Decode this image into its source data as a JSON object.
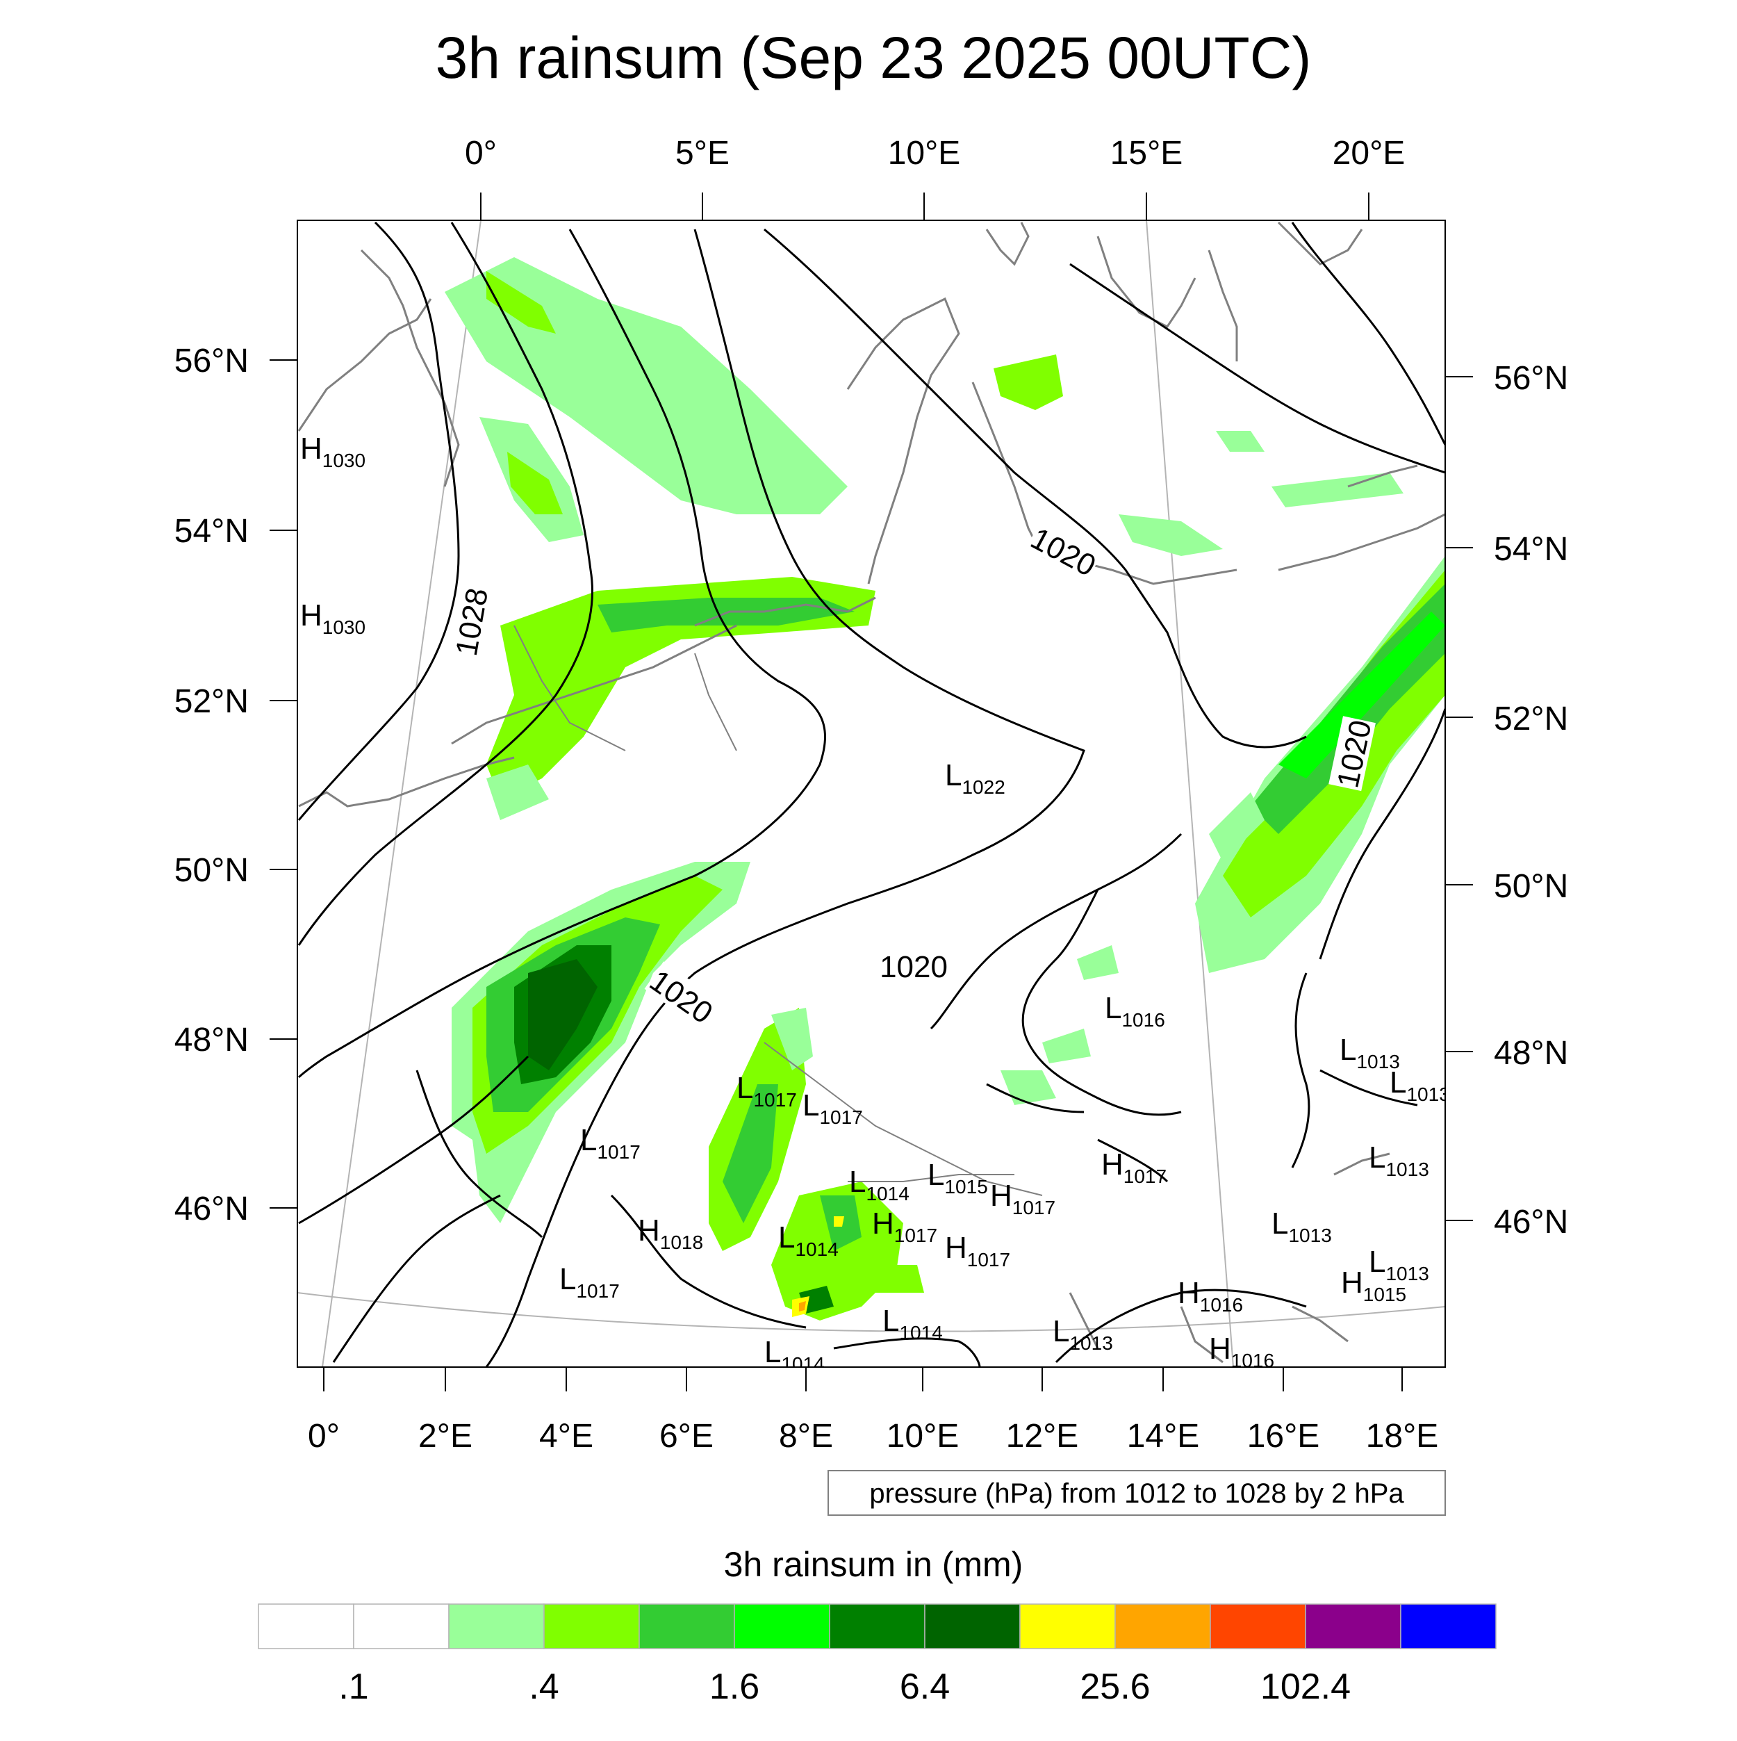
{
  "title": "3h rainsum (Sep 23 2025 00UTC)",
  "top_lon_labels": [
    "0°",
    "5°E",
    "10°E",
    "15°E",
    "20°E"
  ],
  "bottom_lon_labels": [
    "0°",
    "2°E",
    "4°E",
    "6°E",
    "8°E",
    "10°E",
    "12°E",
    "14°E",
    "16°E",
    "18°E"
  ],
  "left_lat_labels": [
    "56°N",
    "54°N",
    "52°N",
    "50°N",
    "48°N",
    "46°N"
  ],
  "right_lat_labels": [
    "56°N",
    "54°N",
    "52°N",
    "50°N",
    "48°N",
    "46°N"
  ],
  "pressure_note": "pressure (hPa) from 1012 to 1028 by 2 hPa",
  "contour_labels": [
    "1028",
    "1020",
    "1020",
    "1020",
    "1020"
  ],
  "pressure_systems": [
    {
      "type": "H",
      "value": "1030"
    },
    {
      "type": "H",
      "value": "1030"
    },
    {
      "type": "L",
      "value": "1022"
    },
    {
      "type": "L",
      "value": "1016"
    },
    {
      "type": "L",
      "value": "1013"
    },
    {
      "type": "L",
      "value": "1013"
    },
    {
      "type": "L",
      "value": "1017"
    },
    {
      "type": "L",
      "value": "1017"
    },
    {
      "type": "L",
      "value": "1017"
    },
    {
      "type": "L",
      "value": "1014"
    },
    {
      "type": "L",
      "value": "1015"
    },
    {
      "type": "H",
      "value": "1017"
    },
    {
      "type": "H",
      "value": "1017"
    },
    {
      "type": "H",
      "value": "1017"
    },
    {
      "type": "H",
      "value": "1017"
    },
    {
      "type": "H",
      "value": "1018"
    },
    {
      "type": "L",
      "value": "1014"
    },
    {
      "type": "L",
      "value": "1013"
    },
    {
      "type": "L",
      "value": "1013"
    },
    {
      "type": "L",
      "value": "1013"
    },
    {
      "type": "H",
      "value": "1015"
    },
    {
      "type": "L",
      "value": "1017"
    },
    {
      "type": "L",
      "value": "1014"
    },
    {
      "type": "L",
      "value": "1014"
    },
    {
      "type": "H",
      "value": "1016"
    },
    {
      "type": "H",
      "value": "1016"
    },
    {
      "type": "L",
      "value": "1013"
    }
  ],
  "colorbar": {
    "title": "3h rainsum in (mm)",
    "colors": [
      "#ffffff",
      "#ffffff",
      "#99ff99",
      "#80ff00",
      "#33cc33",
      "#00ff00",
      "#008000",
      "#006400",
      "#ffff00",
      "#ffa500",
      "#ff4500",
      "#8b008b",
      "#0000ff"
    ],
    "labels": [
      ".1",
      ".4",
      "1.6",
      "6.4",
      "25.6",
      "102.4"
    ]
  },
  "colors": {
    "contour": "#000000",
    "coastline": "#808080",
    "graticule": "#b4b4b4"
  }
}
